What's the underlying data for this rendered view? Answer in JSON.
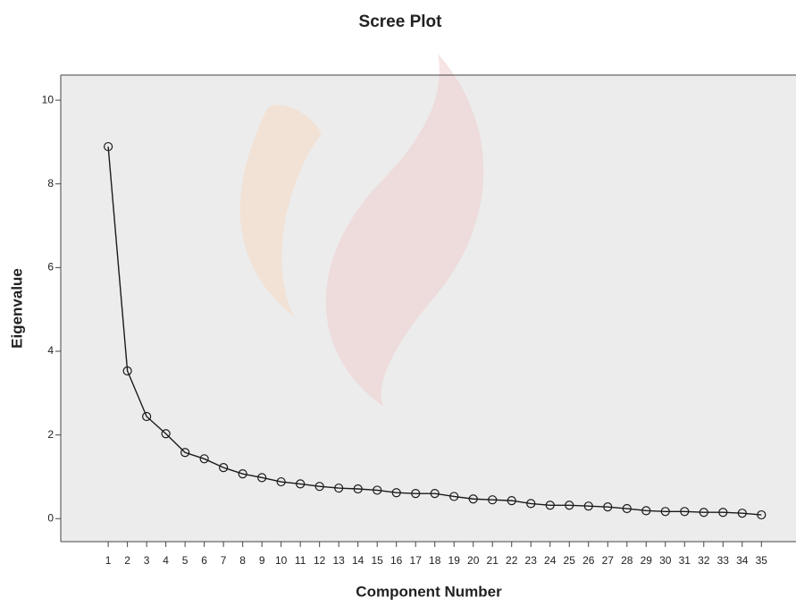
{
  "chart_data": {
    "type": "line",
    "title": "Scree Plot",
    "x_label": "Component Number",
    "y_label": "Eigenvalue",
    "x": [
      1,
      2,
      3,
      4,
      5,
      6,
      7,
      8,
      9,
      10,
      11,
      12,
      13,
      14,
      15,
      16,
      17,
      18,
      19,
      20,
      21,
      22,
      23,
      24,
      25,
      26,
      27,
      28,
      29,
      30,
      31,
      32,
      33,
      34,
      35
    ],
    "values": [
      8.89,
      3.53,
      2.44,
      2.03,
      1.58,
      1.43,
      1.22,
      1.07,
      0.98,
      0.88,
      0.83,
      0.77,
      0.73,
      0.71,
      0.68,
      0.62,
      0.6,
      0.6,
      0.53,
      0.47,
      0.45,
      0.43,
      0.36,
      0.32,
      0.32,
      0.3,
      0.28,
      0.24,
      0.19,
      0.17,
      0.17,
      0.15,
      0.15,
      0.13,
      0.09
    ],
    "color": "#1a1a1a",
    "xlim": [
      -1.47,
      36.8
    ],
    "ylim": [
      -0.55,
      10.6
    ],
    "xticks": [
      1,
      2,
      3,
      4,
      5,
      6,
      7,
      8,
      9,
      10,
      11,
      12,
      13,
      14,
      15,
      16,
      17,
      18,
      19,
      20,
      21,
      22,
      23,
      24,
      25,
      26,
      27,
      28,
      29,
      30,
      31,
      32,
      33,
      34,
      35
    ],
    "yticks": [
      0,
      2,
      4,
      6,
      8,
      10
    ]
  }
}
